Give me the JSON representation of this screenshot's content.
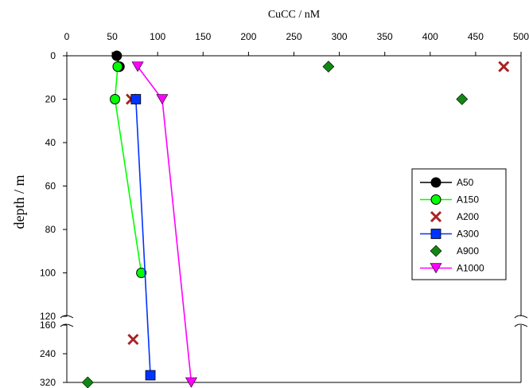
{
  "chart_data": {
    "type": "scatter",
    "title": "",
    "xlabel": "CuCC / nM",
    "ylabel": "depth / m",
    "x_axis_position": "top",
    "y_axis": "inverted, broken",
    "xlim": [
      0,
      500
    ],
    "x_ticks": [
      "0",
      "50",
      "100",
      "150",
      "200",
      "250",
      "300",
      "350",
      "400",
      "450",
      "500"
    ],
    "ylim_upper": [
      0,
      120
    ],
    "y_ticks_upper": [
      "0",
      "20",
      "40",
      "60",
      "80",
      "100",
      "120"
    ],
    "y_ticks_lower": [
      "160",
      "240",
      "320"
    ],
    "grid": false,
    "legend_position": "right",
    "series": [
      {
        "name": "A50",
        "color": "#000000",
        "marker": "circle",
        "line": true,
        "points": [
          {
            "x": 55,
            "y": 0
          },
          {
            "x": 58,
            "y": 5
          }
        ]
      },
      {
        "name": "A150",
        "color": "#00ff00",
        "marker": "circle",
        "line": true,
        "points": [
          {
            "x": 56,
            "y": 5
          },
          {
            "x": 53,
            "y": 20
          },
          {
            "x": 82,
            "y": 100
          }
        ]
      },
      {
        "name": "A200",
        "color": "#aa2222",
        "marker": "x",
        "line": false,
        "points": [
          {
            "x": 481,
            "y": 5
          },
          {
            "x": 71,
            "y": 20
          },
          {
            "x": 73,
            "y": 200
          }
        ]
      },
      {
        "name": "A300",
        "color": "#0033ff",
        "marker": "square",
        "line": true,
        "points": [
          {
            "x": 76,
            "y": 20
          },
          {
            "x": 92,
            "y": 300
          }
        ]
      },
      {
        "name": "A900",
        "color": "#118811",
        "marker": "diamond",
        "line": false,
        "points": [
          {
            "x": 288,
            "y": 5
          },
          {
            "x": 435,
            "y": 20
          },
          {
            "x": 23,
            "y": 320
          }
        ]
      },
      {
        "name": "A1000",
        "color": "#ff00ff",
        "marker": "triangle-down",
        "line": true,
        "points": [
          {
            "x": 78,
            "y": 5
          },
          {
            "x": 105,
            "y": 20
          },
          {
            "x": 137,
            "y": 320
          }
        ]
      }
    ]
  }
}
